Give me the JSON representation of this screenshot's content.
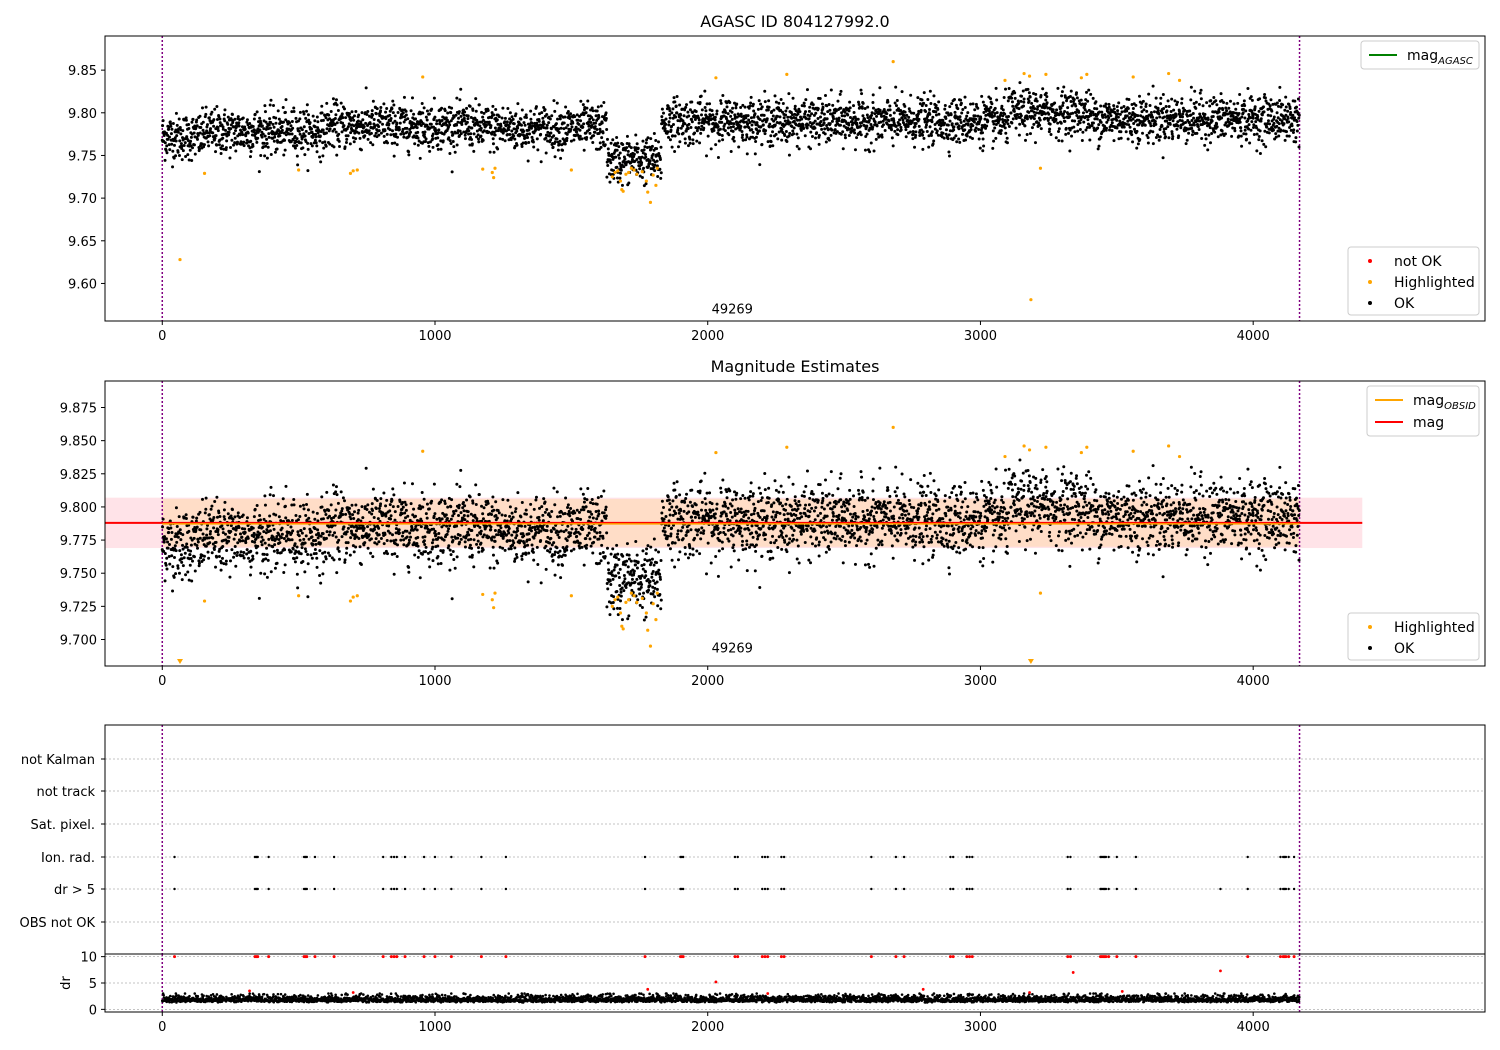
{
  "figure_background": "#ffffff",
  "colors": {
    "ok": "#000000",
    "highlighted": "#ffa500",
    "not_ok": "#ff0000",
    "mag_line": "#ff0000",
    "mag_obsid_line": "#ffa500",
    "mag_agasc_line": "#008000",
    "band_outer": "#ffc0cb",
    "band_inner": "#ffdab9",
    "boundary": "#800080",
    "grid": "#b0b0b0"
  },
  "chart_data": [
    {
      "type": "scatter",
      "title": "AGASC ID 804127992.0",
      "xlim": [
        -210,
        4850
      ],
      "ylim": [
        9.556,
        9.89
      ],
      "xticks": [
        0,
        1000,
        2000,
        3000,
        4000
      ],
      "xtick_labels": [
        "0",
        "1000",
        "2000",
        "3000",
        "4000"
      ],
      "yticks": [
        9.6,
        9.65,
        9.7,
        9.75,
        9.8,
        9.85
      ],
      "ytick_labels": [
        "9.60",
        "9.65",
        "9.70",
        "9.75",
        "9.80",
        "9.85"
      ],
      "vlines": [
        0,
        4170
      ],
      "annotation": {
        "text": "49269",
        "x": 2090,
        "y": 9.565
      },
      "legends": [
        {
          "placement": "upper right",
          "entries": [
            {
              "label": "mag",
              "subscript": "AGASC",
              "kind": "line",
              "color": "#008000"
            }
          ]
        },
        {
          "placement": "lower right",
          "entries": [
            {
              "label": "not OK",
              "kind": "dot",
              "color": "#ff0000"
            },
            {
              "label": "Highlighted",
              "kind": "dot",
              "color": "#ffa500"
            },
            {
              "label": "OK",
              "kind": "dot",
              "color": "#000000"
            }
          ]
        }
      ],
      "series": [
        {
          "name": "OK",
          "color": "#000000",
          "points": "see ok_profile in series generator",
          "approx_count": 4100
        },
        {
          "name": "Highlighted",
          "color": "#ffa500",
          "points": [
            [
              65,
              9.628
            ],
            [
              155,
              9.729
            ],
            [
              500,
              9.733
            ],
            [
              690,
              9.729
            ],
            [
              700,
              9.732
            ],
            [
              715,
              9.733
            ],
            [
              955,
              9.842
            ],
            [
              1175,
              9.734
            ],
            [
              1210,
              9.73
            ],
            [
              1215,
              9.724
            ],
            [
              1220,
              9.735
            ],
            [
              1500,
              9.733
            ],
            [
              1650,
              9.725
            ],
            [
              1660,
              9.73
            ],
            [
              1670,
              9.732
            ],
            [
              1680,
              9.72
            ],
            [
              1685,
              9.71
            ],
            [
              1690,
              9.708
            ],
            [
              1700,
              9.728
            ],
            [
              1710,
              9.73
            ],
            [
              1720,
              9.735
            ],
            [
              1730,
              9.733
            ],
            [
              1740,
              9.728
            ],
            [
              1760,
              9.731
            ],
            [
              1775,
              9.72
            ],
            [
              1780,
              9.707
            ],
            [
              1790,
              9.695
            ],
            [
              1800,
              9.727
            ],
            [
              1810,
              9.715
            ],
            [
              1815,
              9.735
            ],
            [
              2030,
              9.841
            ],
            [
              2290,
              9.845
            ],
            [
              2680,
              9.86
            ],
            [
              3090,
              9.838
            ],
            [
              3160,
              9.846
            ],
            [
              3180,
              9.843
            ],
            [
              3185,
              9.581
            ],
            [
              3220,
              9.735
            ],
            [
              3240,
              9.845
            ],
            [
              3370,
              9.841
            ],
            [
              3390,
              9.845
            ],
            [
              3560,
              9.842
            ],
            [
              3690,
              9.846
            ],
            [
              3730,
              9.838
            ]
          ]
        }
      ]
    },
    {
      "type": "scatter",
      "title": "Magnitude Estimates",
      "xlim": [
        -210,
        4850
      ],
      "ylim": [
        9.68,
        9.895
      ],
      "xticks": [
        0,
        1000,
        2000,
        3000,
        4000
      ],
      "xtick_labels": [
        "0",
        "1000",
        "2000",
        "3000",
        "4000"
      ],
      "yticks": [
        9.7,
        9.725,
        9.75,
        9.775,
        9.8,
        9.825,
        9.85,
        9.875
      ],
      "ytick_labels": [
        "9.700",
        "9.725",
        "9.750",
        "9.775",
        "9.800",
        "9.825",
        "9.850",
        "9.875"
      ],
      "vlines": [
        0,
        4170
      ],
      "annotation": {
        "text": "49269",
        "x": 2090,
        "y": 9.69
      },
      "mag_line": {
        "value": 9.788,
        "x_range": [
          -210,
          4400
        ]
      },
      "mag_band": {
        "low": 9.769,
        "high": 9.807,
        "x_range": [
          -210,
          4400
        ]
      },
      "mag_obsid": {
        "value": 9.788,
        "x_range": [
          0,
          4170
        ],
        "inner_band": [
          9.77,
          9.806
        ]
      },
      "clipped_markers": [
        {
          "x": 65
        },
        {
          "x": 3185
        }
      ],
      "legends": [
        {
          "placement": "upper right",
          "entries": [
            {
              "label": "mag",
              "subscript": "OBSID",
              "kind": "line",
              "color": "#ffa500"
            },
            {
              "label": "mag",
              "kind": "line",
              "color": "#ff0000"
            }
          ]
        },
        {
          "placement": "lower right",
          "entries": [
            {
              "label": "Highlighted",
              "kind": "dot",
              "color": "#ffa500"
            },
            {
              "label": "OK",
              "kind": "dot",
              "color": "#000000"
            }
          ]
        }
      ]
    },
    {
      "type": "scatter",
      "title": "",
      "xlim": [
        -210,
        4850
      ],
      "categories": [
        "not Kalman",
        "not track",
        "Sat. pixel.",
        "Ion. rad.",
        "dr > 5",
        "OBS not OK"
      ],
      "flag_x": {
        "Ion. rad.": [
          45,
          340,
          345,
          350,
          390,
          520,
          525,
          530,
          560,
          630,
          810,
          840,
          850,
          860,
          890,
          960,
          1000,
          1060,
          1170,
          1260,
          1770,
          1900,
          1905,
          1910,
          2100,
          2110,
          2200,
          2210,
          2220,
          2270,
          2280,
          2600,
          2690,
          2720,
          2890,
          2900,
          2950,
          2960,
          2970,
          3320,
          3330,
          3440,
          3445,
          3450,
          3455,
          3460,
          3470,
          3500,
          3570,
          3980,
          4100,
          4110,
          4115,
          4120,
          4130,
          4150
        ],
        "dr > 5": [
          45,
          340,
          345,
          350,
          390,
          520,
          525,
          530,
          560,
          630,
          810,
          840,
          850,
          860,
          890,
          960,
          1000,
          1060,
          1170,
          1260,
          1770,
          1900,
          1905,
          1910,
          2100,
          2110,
          2200,
          2210,
          2220,
          2270,
          2280,
          2600,
          2690,
          2720,
          2890,
          2900,
          2950,
          2960,
          2970,
          3320,
          3330,
          3440,
          3445,
          3450,
          3455,
          3460,
          3470,
          3500,
          3570,
          3880,
          3980,
          4100,
          4110,
          4115,
          4120,
          4130,
          4150
        ]
      }
    },
    {
      "type": "scatter",
      "title": "",
      "ylabel": "dr",
      "xlim": [
        -210,
        4850
      ],
      "ylim": [
        -0.5,
        10.5
      ],
      "xticks": [
        0,
        1000,
        2000,
        3000,
        4000
      ],
      "xtick_labels": [
        "0",
        "1000",
        "2000",
        "3000",
        "4000"
      ],
      "yticks": [
        0,
        5,
        10
      ],
      "ytick_labels": [
        "0",
        "5",
        "10"
      ],
      "capped_red_x": [
        45,
        340,
        345,
        350,
        390,
        520,
        525,
        530,
        560,
        630,
        810,
        840,
        850,
        860,
        890,
        960,
        1000,
        1060,
        1170,
        1260,
        1770,
        1900,
        1905,
        1910,
        2100,
        2110,
        2200,
        2210,
        2220,
        2270,
        2280,
        2600,
        2690,
        2720,
        2890,
        2900,
        2950,
        2960,
        2970,
        3320,
        3330,
        3440,
        3445,
        3450,
        3455,
        3460,
        3470,
        3500,
        3570,
        3980,
        4100,
        4110,
        4115,
        4120,
        4130,
        4150
      ],
      "red_points": [
        [
          2030,
          5.2
        ],
        [
          3340,
          7.0
        ],
        [
          3880,
          7.3
        ],
        [
          320,
          3.5
        ],
        [
          1780,
          3.8
        ],
        [
          2790,
          3.8
        ],
        [
          3180,
          3.2
        ],
        [
          3520,
          3.4
        ],
        [
          2220,
          3.0
        ],
        [
          700,
          3.2
        ]
      ]
    }
  ]
}
